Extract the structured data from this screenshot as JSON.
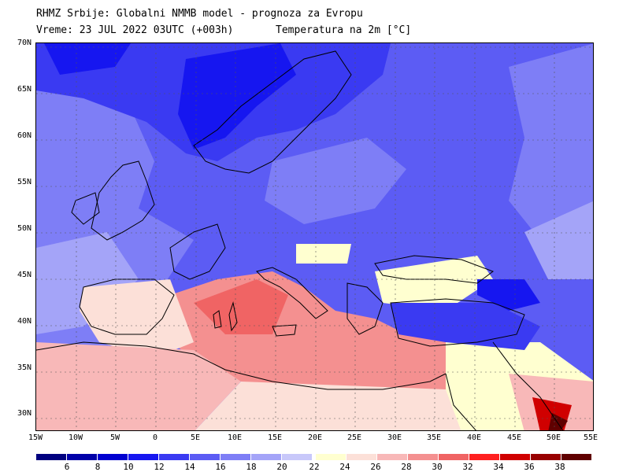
{
  "header": {
    "line1": "RHMZ Srbije: Globalni NMMB model - prognoza za Evropu",
    "line2": "Vreme: 23 JUL 2022 03UTC (+003h)",
    "line3": "Temperatura na 2m [°C]"
  },
  "lat_labels": [
    "70N",
    "65N",
    "60N",
    "55N",
    "50N",
    "45N",
    "40N",
    "35N",
    "30N"
  ],
  "lon_labels": [
    "15W",
    "10W",
    "5W",
    "0",
    "5E",
    "10E",
    "15E",
    "20E",
    "25E",
    "30E",
    "35E",
    "40E",
    "45E",
    "50E",
    "55E"
  ],
  "colorbar": {
    "labels": [
      "6",
      "8",
      "10",
      "12",
      "14",
      "16",
      "18",
      "20",
      "22",
      "24",
      "26",
      "28",
      "30",
      "32",
      "34",
      "36",
      "38"
    ],
    "colors": [
      "#00007f",
      "#0000a8",
      "#0000d0",
      "#1616f0",
      "#3a3af2",
      "#5c5cf4",
      "#7e7ef6",
      "#a4a4f8",
      "#c8c8fa",
      "#ffffd0",
      "#fce0d8",
      "#f8b8b8",
      "#f49090",
      "#f06464",
      "#ff2020",
      "#d00000",
      "#980000",
      "#600000"
    ]
  },
  "colors": {
    "sea_warm": "#f49090",
    "land_cool": "#5c5cf4",
    "north_cold": "#1616f0",
    "warm_land": "#ffffd0",
    "hot_spot": "#d00000"
  }
}
